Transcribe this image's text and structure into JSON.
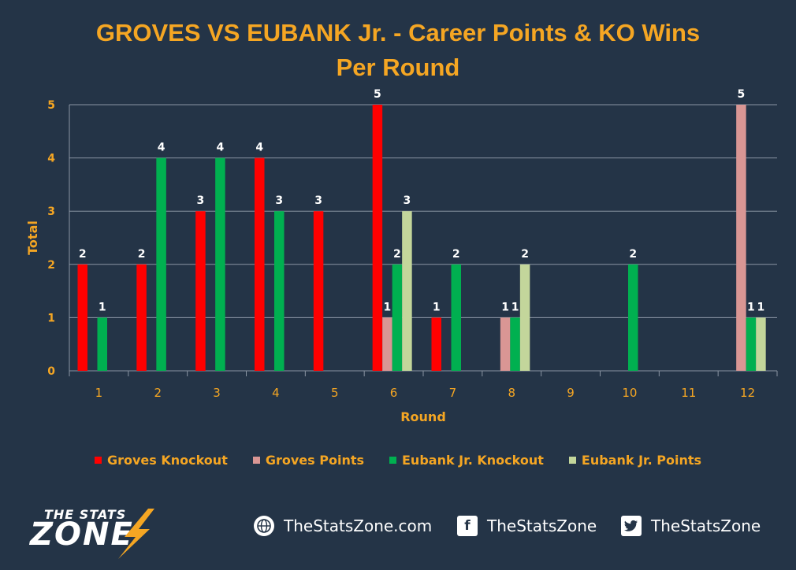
{
  "title": {
    "line1": "GROVES VS EUBANK Jr. - Career Points & KO Wins",
    "line2": "Per Round"
  },
  "chart_data": {
    "type": "bar",
    "xlabel": "Round",
    "ylabel": "Total",
    "ylim": [
      0,
      5
    ],
    "yticks": [
      0,
      1,
      2,
      3,
      4,
      5
    ],
    "categories": [
      "1",
      "2",
      "3",
      "4",
      "5",
      "6",
      "7",
      "8",
      "9",
      "10",
      "11",
      "12"
    ],
    "grid": true,
    "legend_position": "bottom",
    "series": [
      {
        "name": "Groves Knockout",
        "color": "#ff0000",
        "values": [
          2,
          2,
          3,
          4,
          3,
          5,
          1,
          0,
          0,
          0,
          0,
          0
        ]
      },
      {
        "name": "Groves Points",
        "color": "#d99694",
        "values": [
          0,
          0,
          0,
          0,
          0,
          1,
          0,
          1,
          0,
          0,
          0,
          5
        ]
      },
      {
        "name": "Eubank Jr. Knockout",
        "color": "#00b050",
        "values": [
          1,
          4,
          4,
          3,
          0,
          2,
          2,
          1,
          0,
          2,
          0,
          1
        ]
      },
      {
        "name": "Eubank Jr. Points",
        "color": "#c3d69b",
        "values": [
          0,
          0,
          0,
          0,
          0,
          3,
          0,
          2,
          0,
          0,
          0,
          1
        ]
      }
    ]
  },
  "colors": {
    "background": "#243447",
    "accent": "#f5a623",
    "text": "#ffffff",
    "grid": "#8a95a3"
  },
  "brand": {
    "top": "THE STATS",
    "main": "ZONE"
  },
  "social": {
    "web": {
      "icon": "globe-icon",
      "label": "TheStatsZone.com"
    },
    "facebook": {
      "icon": "facebook-icon",
      "label": "TheStatsZone"
    },
    "twitter": {
      "icon": "twitter-icon",
      "label": "TheStatsZone"
    }
  }
}
